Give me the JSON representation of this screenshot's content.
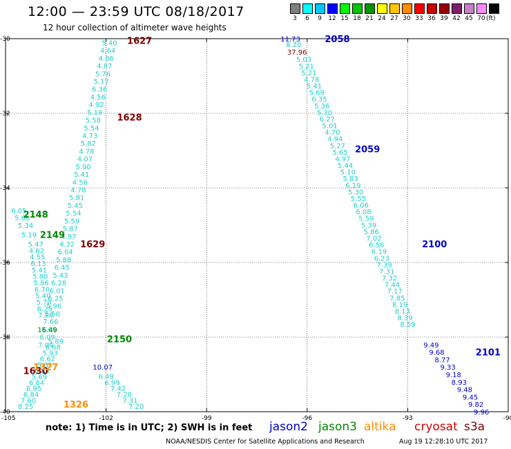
{
  "header": {
    "title": "12:00 — 23:59 UTC 08/18/2017",
    "subtitle": "12 hour collection of altimeter wave heights"
  },
  "colorbar": {
    "unit": "(ft)",
    "bins": [
      {
        "label": "3",
        "color": "#7f7f7f"
      },
      {
        "label": "6",
        "color": "#00ffff"
      },
      {
        "label": "9",
        "color": "#00c8ff"
      },
      {
        "label": "12",
        "color": "#0000ff"
      },
      {
        "label": "15",
        "color": "#00ff00"
      },
      {
        "label": "18",
        "color": "#00c800"
      },
      {
        "label": "21",
        "color": "#009600"
      },
      {
        "label": "24",
        "color": "#ffff00"
      },
      {
        "label": "27",
        "color": "#ffc800"
      },
      {
        "label": "30",
        "color": "#ff8c00"
      },
      {
        "label": "33",
        "color": "#ff0000"
      },
      {
        "label": "36",
        "color": "#c80000"
      },
      {
        "label": "39",
        "color": "#960000"
      },
      {
        "label": "42",
        "color": "#7a1f6b"
      },
      {
        "label": "45",
        "color": "#c87fc8"
      },
      {
        "label": "70",
        "color": "#ff8cff"
      },
      {
        "label": "",
        "color": "#000000"
      }
    ]
  },
  "footer": {
    "note": "note:  1) Time is in UTC;  2) SWH is in feet",
    "satellites": [
      {
        "name": "jason2",
        "color": "#0000cc"
      },
      {
        "name": "jason3",
        "color": "#008800"
      },
      {
        "name": "altika",
        "color": "#ff8c00"
      },
      {
        "name": "cryosat",
        "color": "#cc0000"
      },
      {
        "name": "s3a",
        "color": "#800000"
      }
    ],
    "credit": "NOAA/NESDIS Center for Satellite Applications and Research",
    "timestamp": "Aug 19 12:28:10 UTC 2017"
  },
  "chart_data": {
    "type": "scatter",
    "xlim": [
      -105,
      -90
    ],
    "ylim": [
      -40,
      -30
    ],
    "xticks": [
      "-105",
      "-102",
      "-99",
      "-96",
      "-93",
      "-90"
    ],
    "yticks": [
      "-30",
      "-32",
      "-34",
      "-36",
      "-38",
      "-40"
    ],
    "grid": "dotted",
    "colors": {
      "cyan": "#22cccc",
      "blue": "#0000cc",
      "green": "#008800",
      "orange": "#ff8c00",
      "red": "#800000"
    },
    "tracks": [
      {
        "color": "cyan",
        "x0": -101.9,
        "y0": -30.1,
        "x1": -103.8,
        "y1": -38.2,
        "values": [
          "5.40",
          "4.64",
          "4.86",
          "4.87",
          "5.76",
          "5.17",
          "6.36",
          "4.56",
          "4.92",
          "5.19",
          "5.58",
          "5.54",
          "4.73",
          "5.82",
          "4.78",
          "4.07",
          "5.90",
          "5.41",
          "4.56",
          "4.78",
          "5.81",
          "5.45",
          "5.54",
          "5.59",
          "5.87",
          "4.97",
          "4.32",
          "6.04",
          "5.88",
          "6.45",
          "5.43",
          "6.28",
          "6.01",
          "6.25",
          "5.96",
          "6.50",
          "7.66",
          "5.66",
          "6.09",
          "7.04"
        ]
      },
      {
        "color": "blue",
        "x0": -102.1,
        "y0": -38.8,
        "x1": -102.1,
        "y1": -38.8,
        "values": [
          "10.07"
        ]
      },
      {
        "color": "cyan",
        "x0": -102.0,
        "y0": -39.05,
        "x1": -101.1,
        "y1": -39.85,
        "values": [
          "6.49",
          "6.99",
          "7.42",
          "7.28",
          "7.31",
          "7.20"
        ]
      },
      {
        "color": "cyan",
        "x0": -104.3,
        "y0": -35.25,
        "x1": -104.2,
        "y1": -35.25,
        "values": [
          "5.19"
        ]
      },
      {
        "color": "cyan",
        "x0": -104.6,
        "y0": -34.6,
        "x1": -104.4,
        "y1": -35.0,
        "values": [
          "6.05",
          "5.66",
          "5.34"
        ]
      },
      {
        "color": "cyan",
        "x0": -104.1,
        "y0": -35.5,
        "x1": -103.8,
        "y1": -37.4,
        "values": [
          "5.47",
          "4.62",
          "4.55",
          "6.13",
          "5.41",
          "5.80",
          "5.86",
          "6.70",
          "5.40",
          "5.70",
          "6.25",
          "7.28"
        ]
      },
      {
        "color": "green",
        "x0": -103.75,
        "y0": -37.8,
        "x1": -103.75,
        "y1": -37.8,
        "values": [
          "16.49"
        ]
      },
      {
        "color": "cyan",
        "x0": -103.5,
        "y0": -38.1,
        "x1": -104.4,
        "y1": -39.85,
        "values": [
          "5.89",
          "6.68",
          "5.93",
          "6.62",
          "5.82",
          "6.88",
          "5.69",
          "6.84",
          "6.95",
          "6.84",
          "7.60",
          "8.25"
        ]
      },
      {
        "color": "cyan",
        "x0": -96.4,
        "y0": -30.15,
        "x1": -96.4,
        "y1": -30.15,
        "values": [
          "8.20"
        ]
      },
      {
        "color": "blue",
        "x0": -96.5,
        "y0": -30.0,
        "x1": -96.5,
        "y1": -30.0,
        "values": [
          "11.73"
        ]
      },
      {
        "color": "red",
        "x0": -96.3,
        "y0": -30.35,
        "x1": -96.3,
        "y1": -30.35,
        "values": [
          "37.96"
        ]
      },
      {
        "color": "cyan",
        "x0": -96.1,
        "y0": -30.55,
        "x1": -93.0,
        "y1": -37.65,
        "values": [
          "5.03",
          "5.21",
          "5.21",
          "4.78",
          "5.41",
          "5.69",
          "6.35",
          "5.36",
          "5.30",
          "6.27",
          "5.01",
          "4.70",
          "4.94",
          "5.27",
          "5.65",
          "4.97",
          "5.44",
          "5.10",
          "5.83",
          "6.19",
          "5.30",
          "5.55",
          "6.06",
          "6.08",
          "5.59",
          "5.39",
          "5.86",
          "7.02",
          "6.56",
          "6.19",
          "6.23",
          "7.39",
          "7.31",
          "7.32",
          "7.44",
          "7.17",
          "7.85",
          "8.19",
          "8.13",
          "8.39",
          "8.59"
        ]
      },
      {
        "color": "blue",
        "x0": -92.3,
        "y0": -38.2,
        "x1": -90.8,
        "y1": -40.0,
        "values": [
          "9.49",
          "9.68",
          "8.77",
          "9.33",
          "9.18",
          "8.93",
          "9.48",
          "9.45",
          "9.82",
          "9.96"
        ]
      }
    ],
    "pass_labels": [
      {
        "text": "1627",
        "x": -101.0,
        "y": -30.05,
        "color": "red"
      },
      {
        "text": "1628",
        "x": -101.3,
        "y": -32.1,
        "color": "red"
      },
      {
        "text": "1629",
        "x": -102.4,
        "y": -35.5,
        "color": "red"
      },
      {
        "text": "1630",
        "x": -104.1,
        "y": -38.9,
        "color": "red"
      },
      {
        "text": "2058",
        "x": -95.1,
        "y": -30.0,
        "color": "blue"
      },
      {
        "text": "2059",
        "x": -94.2,
        "y": -32.95,
        "color": "blue"
      },
      {
        "text": "2100",
        "x": -92.2,
        "y": -35.5,
        "color": "blue"
      },
      {
        "text": "2101",
        "x": -90.6,
        "y": -38.4,
        "color": "blue"
      },
      {
        "text": "2148",
        "x": -104.1,
        "y": -34.7,
        "color": "green"
      },
      {
        "text": "2149",
        "x": -103.6,
        "y": -35.25,
        "color": "green"
      },
      {
        "text": "2150",
        "x": -101.6,
        "y": -38.05,
        "color": "green"
      },
      {
        "text": "1327",
        "x": -103.8,
        "y": -38.8,
        "color": "orange"
      },
      {
        "text": "1326",
        "x": -102.9,
        "y": -39.8,
        "color": "orange"
      }
    ]
  }
}
